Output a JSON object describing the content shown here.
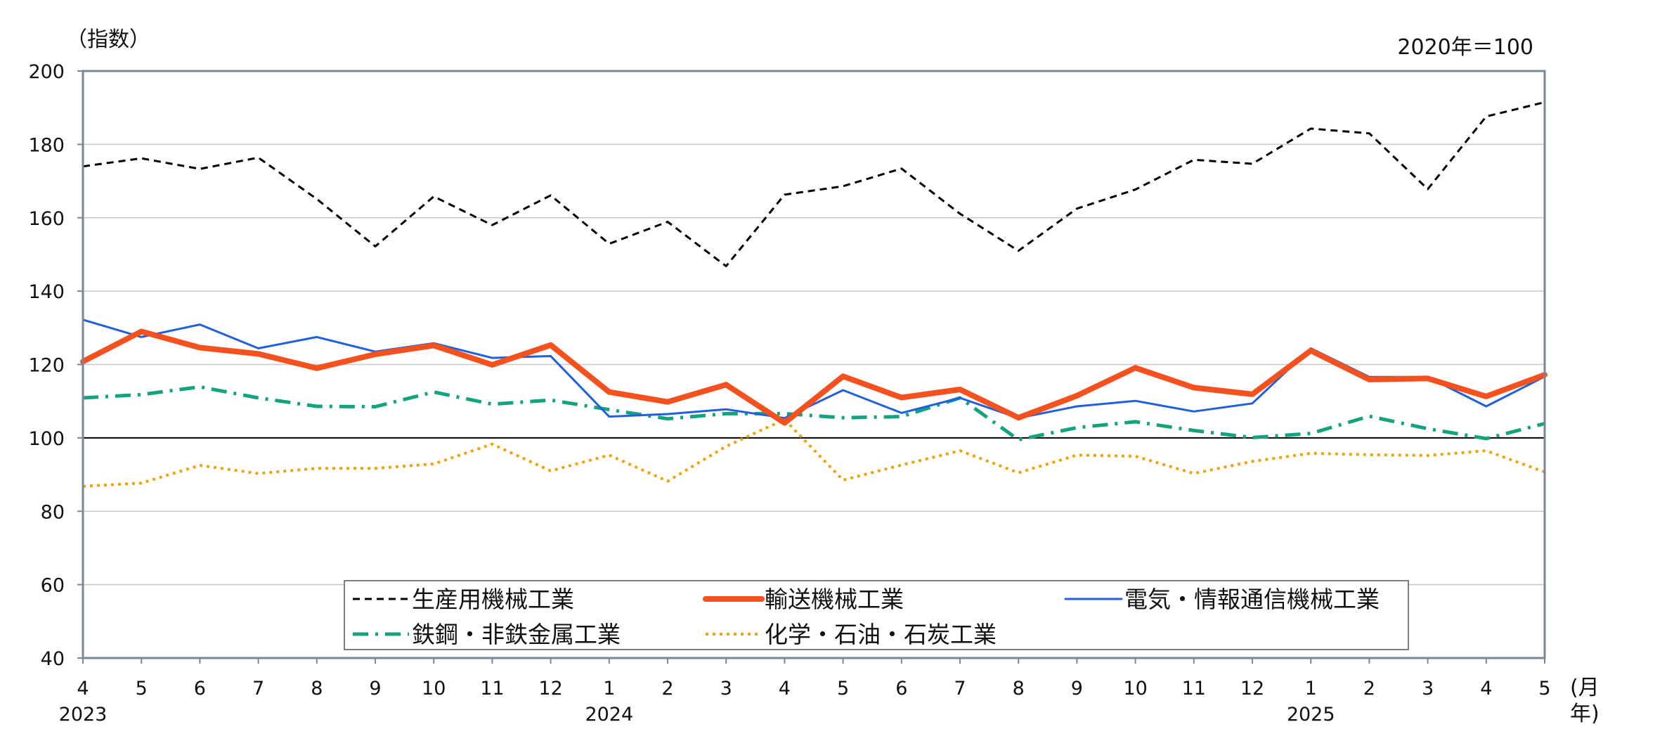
{
  "chart_data": {
    "type": "line",
    "ylabel": "（指数）",
    "unit_note": "2020年＝100",
    "x_unit_label": "(月",
    "x_unit_label2": "年)",
    "ylim": [
      40,
      200
    ],
    "yticks": [
      40,
      60,
      80,
      100,
      120,
      140,
      160,
      180,
      200
    ],
    "grid": true,
    "reference_line": 100,
    "legend_position": "bottom-center, inside plot",
    "categories": [
      "4",
      "5",
      "6",
      "7",
      "8",
      "9",
      "10",
      "11",
      "12",
      "1",
      "2",
      "3",
      "4",
      "5",
      "6",
      "7",
      "8",
      "9",
      "10",
      "11",
      "12",
      "1",
      "2",
      "3",
      "4",
      "5"
    ],
    "year_labels": [
      {
        "index": 0,
        "label": "2023"
      },
      {
        "index": 9,
        "label": "2024"
      },
      {
        "index": 21,
        "label": "2025"
      }
    ],
    "series": [
      {
        "name": "生産用機械工業",
        "color": "#000000",
        "style": "dashed",
        "values": [
          174.0,
          176.2,
          173.3,
          176.4,
          165.1,
          152.2,
          165.8,
          158.0,
          166.1,
          152.9,
          158.9,
          146.8,
          166.3,
          168.6,
          173.4,
          161.1,
          151.0,
          162.5,
          167.7,
          175.8,
          174.7,
          184.3,
          183.0,
          167.8,
          187.6,
          191.5
        ]
      },
      {
        "name": "輸送機械工業",
        "color": "#f4511e",
        "style": "solid-thick",
        "values": [
          120.8,
          129.0,
          124.6,
          122.9,
          119.0,
          122.8,
          125.2,
          119.9,
          125.3,
          112.5,
          109.8,
          114.5,
          104.1,
          116.8,
          111.0,
          113.2,
          105.5,
          111.5,
          119.1,
          113.7,
          111.9,
          123.8,
          115.9,
          116.2,
          111.3,
          117.2
        ]
      },
      {
        "name": "電気・情報通信機械工業",
        "color": "#1f5fe0",
        "style": "solid",
        "values": [
          132.2,
          127.5,
          130.9,
          124.4,
          127.5,
          123.5,
          125.8,
          121.8,
          122.3,
          105.8,
          106.5,
          107.8,
          105.4,
          113.0,
          106.8,
          110.9,
          105.4,
          108.6,
          110.1,
          107.2,
          109.4,
          124.4,
          116.6,
          116.6,
          108.6,
          116.7
        ]
      },
      {
        "name": "鉄鋼・非鉄金属工業",
        "color": "#14a37f",
        "style": "dash-dot",
        "values": [
          110.9,
          111.8,
          113.9,
          110.9,
          108.6,
          108.5,
          112.5,
          109.2,
          110.3,
          107.7,
          105.2,
          106.6,
          106.6,
          105.5,
          105.8,
          110.9,
          99.5,
          102.8,
          104.4,
          102.0,
          100.1,
          101.2,
          105.9,
          102.5,
          99.8,
          103.9
        ]
      },
      {
        "name": "化学・石油・石炭工業",
        "color": "#f0a30a",
        "style": "dotted",
        "values": [
          86.8,
          87.7,
          92.5,
          90.3,
          91.7,
          91.7,
          92.9,
          98.3,
          91.0,
          95.3,
          88.2,
          97.7,
          105.0,
          88.5,
          92.6,
          96.5,
          90.5,
          95.3,
          95.0,
          90.3,
          93.6,
          95.8,
          95.4,
          95.2,
          96.5,
          90.7
        ]
      }
    ],
    "legend": {
      "rows": [
        [
          "生産用機械工業",
          "輸送機械工業",
          "電気・情報通信機械工業"
        ],
        [
          "鉄鋼・非鉄金属工業",
          "化学・石油・石炭工業"
        ]
      ]
    }
  }
}
